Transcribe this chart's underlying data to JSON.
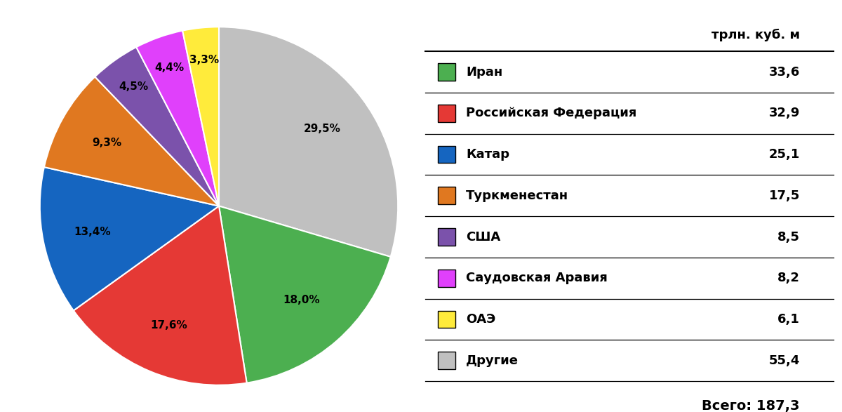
{
  "labels": [
    "Другие",
    "Иран",
    "Российская Федерация",
    "Катар",
    "Туркменестан",
    "США",
    "Саудовская Аравия",
    "ОАЭ"
  ],
  "values": [
    55.4,
    33.6,
    32.9,
    25.1,
    17.5,
    8.5,
    8.2,
    6.1
  ],
  "percentages": [
    "29,5%",
    "18,0%",
    "17,6%",
    "13,4%",
    "9,3%",
    "4,5%",
    "4,4%",
    "3,3%"
  ],
  "colors": [
    "#c0c0c0",
    "#4caf50",
    "#e53935",
    "#1565c0",
    "#e07820",
    "#7b52ab",
    "#e040fb",
    "#ffeb3b"
  ],
  "legend_labels": [
    "Иран",
    "Российская Федерация",
    "Катар",
    "Туркменестан",
    "США",
    "Саудовская Аравия",
    "ОАЭ",
    "Другие"
  ],
  "legend_values": [
    "33,6",
    "32,9",
    "25,1",
    "17,5",
    "8,5",
    "8,2",
    "6,1",
    "55,4"
  ],
  "legend_colors": [
    "#4caf50",
    "#e53935",
    "#1565c0",
    "#e07820",
    "#7b52ab",
    "#e040fb",
    "#ffeb3b",
    "#c0c0c0"
  ],
  "header": "трлн. куб. м",
  "total_label": "Всего: 187,3",
  "pct_fontsize": 11,
  "legend_fontsize": 13,
  "header_fontsize": 13,
  "pct_radii": [
    0.72,
    0.7,
    0.72,
    0.72,
    0.72,
    0.82,
    0.82,
    0.82
  ]
}
